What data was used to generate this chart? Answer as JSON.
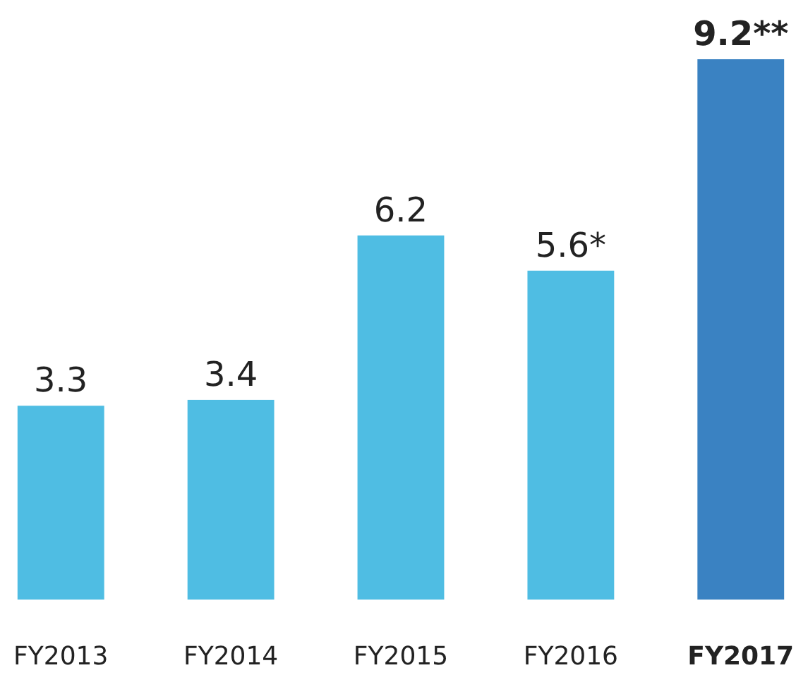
{
  "chart_data": {
    "type": "bar",
    "categories": [
      "FY2013",
      "FY2014",
      "FY2015",
      "FY2016",
      "FY2017"
    ],
    "values": [
      3.3,
      3.4,
      6.2,
      5.6,
      9.2
    ],
    "colors": [
      "#4fbde3",
      "#4fbde3",
      "#4fbde3",
      "#4fbde3",
      "#3a82c2"
    ],
    "value_labels": [
      "3.3",
      "3.4",
      "6.2",
      "5.6*",
      "9.2**"
    ]
  }
}
